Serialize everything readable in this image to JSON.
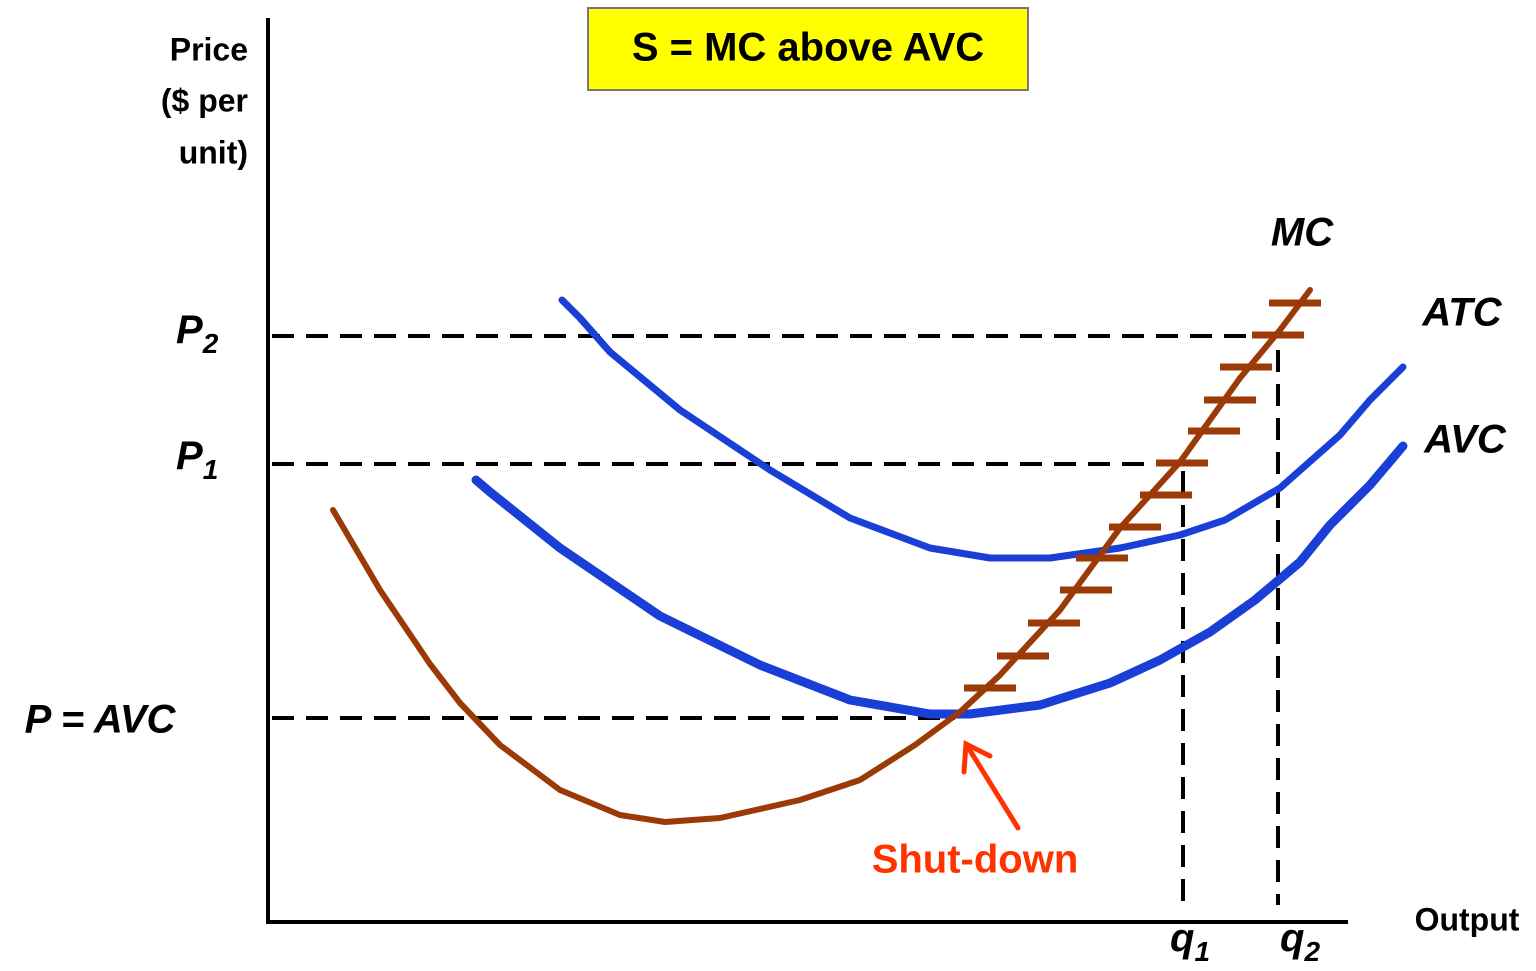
{
  "title": "S = MC above AVC",
  "y_axis_label": [
    "Price",
    "($ per",
    "unit)"
  ],
  "x_axis_label": "Output",
  "curves": {
    "mc": "MC",
    "atc": "ATC",
    "avc": "AVC"
  },
  "prices": [
    {
      "letter": "P",
      "sub": "2"
    },
    {
      "letter": "P",
      "sub": "1"
    },
    {
      "text": "P = AVC"
    }
  ],
  "quantities": [
    {
      "letter": "q",
      "sub": "1"
    },
    {
      "letter": "q",
      "sub": "2"
    }
  ],
  "annotation": "Shut-down"
}
